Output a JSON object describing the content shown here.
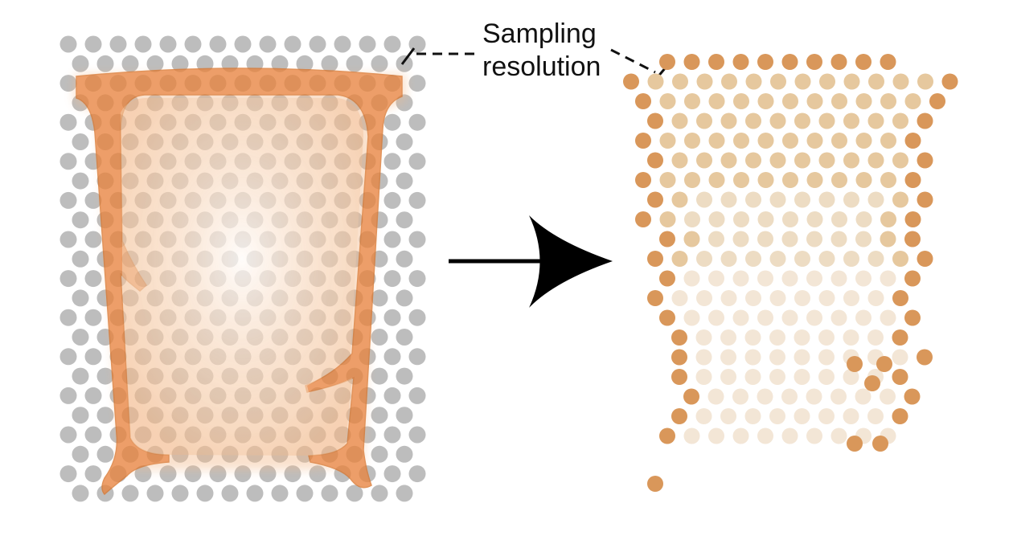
{
  "annotation": {
    "line1": "Sampling",
    "line2": "resolution"
  },
  "colors": {
    "background": "#ffffff",
    "grid_dot": "#bdbdbd",
    "tissue_edge": "#e8843f",
    "tissue_fill": "#f3b98a",
    "dot_strong": "#d9975a",
    "dot_mid": "#e6c89e",
    "dot_faint": "#f3e6d6",
    "arrow": "#000000",
    "leader_line": "#111111"
  },
  "panels": {
    "left": "tissue overlaid on sampling grid",
    "right": "sampled spots"
  }
}
